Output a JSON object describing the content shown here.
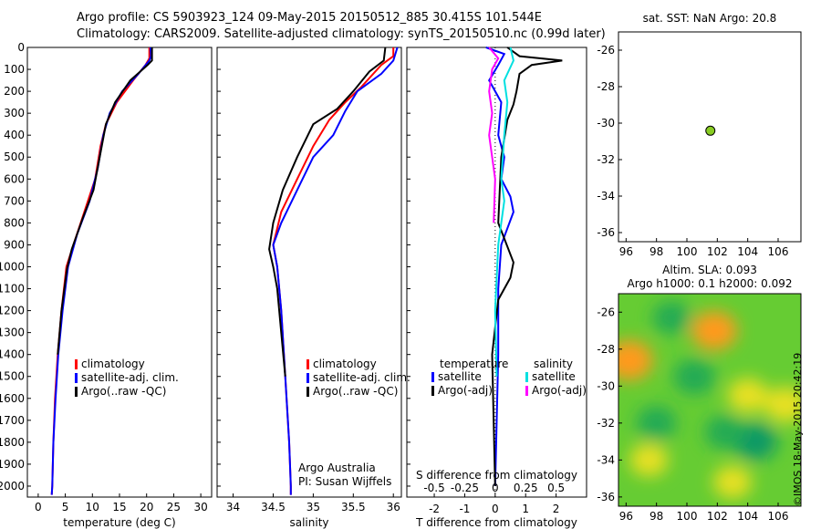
{
  "header": {
    "line1": "Argo profile: CS 5903923_124 09-May-2015 20150512_885 30.415S 101.544E",
    "line2": "Climatology: CARS2009. Satellite-adjusted climatology: synTS_20150510.nc (0.99d later)"
  },
  "colors": {
    "clim": "#ff0000",
    "sat": "#0000ff",
    "argo": "#000000",
    "sat_s": "#00e0e0",
    "argo_s": "#ff00ff",
    "marker": "#88cc22"
  },
  "credits": {
    "line1": "Argo Australia",
    "line2": "PI: Susan Wijffels"
  },
  "timestamp": "©IMOS 18-May-2015 20:42:19",
  "chart_data": [
    {
      "id": "temperature",
      "type": "line",
      "xlabel": "temperature (deg C)",
      "xlim": [
        -2,
        32
      ],
      "ylim": [
        0,
        2050
      ],
      "xticks": [
        "0",
        "5",
        "10",
        "15",
        "20",
        "25",
        "30"
      ],
      "yticks": [
        "0",
        "100",
        "200",
        "300",
        "400",
        "500",
        "600",
        "700",
        "800",
        "900",
        "1000",
        "1100",
        "1200",
        "1300",
        "1400",
        "1500",
        "1600",
        "1700",
        "1800",
        "1900",
        "2000"
      ],
      "legend": [
        "climatology",
        "satellite-adj. clim.",
        "Argo(..raw -QC)"
      ],
      "series": [
        {
          "name": "climatology",
          "color": "clim",
          "points": [
            [
              20.5,
              0
            ],
            [
              20.5,
              50
            ],
            [
              19.8,
              80
            ],
            [
              17.5,
              150
            ],
            [
              14.5,
              250
            ],
            [
              12.5,
              350
            ],
            [
              11.5,
              450
            ],
            [
              10.5,
              600
            ],
            [
              8.5,
              750
            ],
            [
              6.5,
              900
            ],
            [
              5.2,
              1000
            ],
            [
              4.3,
              1200
            ],
            [
              3.6,
              1400
            ],
            [
              3.1,
              1600
            ],
            [
              2.8,
              1800
            ],
            [
              2.6,
              2000
            ],
            [
              2.5,
              2040
            ]
          ]
        },
        {
          "name": "satellite-adj. clim.",
          "color": "sat",
          "points": [
            [
              20.7,
              0
            ],
            [
              20.8,
              40
            ],
            [
              20.5,
              60
            ],
            [
              18.5,
              120
            ],
            [
              15.5,
              200
            ],
            [
              13.2,
              300
            ],
            [
              12.0,
              400
            ],
            [
              11.0,
              550
            ],
            [
              9.5,
              700
            ],
            [
              7.2,
              850
            ],
            [
              5.5,
              1000
            ],
            [
              4.5,
              1200
            ],
            [
              3.7,
              1400
            ],
            [
              3.2,
              1600
            ],
            [
              2.8,
              1800
            ],
            [
              2.6,
              2000
            ],
            [
              2.5,
              2040
            ]
          ]
        },
        {
          "name": "Argo(..raw -QC)",
          "color": "argo",
          "points": [
            [
              21.0,
              0
            ],
            [
              21.0,
              60
            ],
            [
              20.2,
              80
            ],
            [
              17.0,
              150
            ],
            [
              14.2,
              250
            ],
            [
              12.5,
              350
            ],
            [
              11.5,
              480
            ],
            [
              10.2,
              650
            ],
            [
              8.2,
              780
            ],
            [
              6.2,
              920
            ],
            [
              5.3,
              1010
            ],
            [
              4.3,
              1200
            ],
            [
              3.6,
              1400
            ]
          ]
        }
      ]
    },
    {
      "id": "salinity",
      "type": "line",
      "xlabel": "salinity",
      "xlim": [
        33.8,
        36.1
      ],
      "ylim": [
        0,
        2050
      ],
      "xticks": [
        "34",
        "34.5",
        "35",
        "35.5",
        "36"
      ],
      "legend": [
        "climatology",
        "satellite-adj. clim.",
        "Argo(..raw -QC)"
      ],
      "series": [
        {
          "name": "climatology",
          "color": "clim",
          "points": [
            [
              36.0,
              0
            ],
            [
              36.0,
              40
            ],
            [
              35.85,
              80
            ],
            [
              35.6,
              180
            ],
            [
              35.4,
              250
            ],
            [
              35.2,
              330
            ],
            [
              35.0,
              450
            ],
            [
              34.8,
              600
            ],
            [
              34.6,
              750
            ],
            [
              34.5,
              900
            ],
            [
              34.55,
              1000
            ],
            [
              34.6,
              1200
            ],
            [
              34.65,
              1500
            ],
            [
              34.7,
              1800
            ],
            [
              34.72,
              2000
            ],
            [
              34.72,
              2040
            ]
          ]
        },
        {
          "name": "satellite-adj. clim.",
          "color": "sat",
          "points": [
            [
              36.05,
              0
            ],
            [
              36.0,
              60
            ],
            [
              35.85,
              120
            ],
            [
              35.55,
              200
            ],
            [
              35.4,
              290
            ],
            [
              35.25,
              400
            ],
            [
              35.0,
              500
            ],
            [
              34.8,
              650
            ],
            [
              34.6,
              800
            ],
            [
              34.5,
              900
            ],
            [
              34.55,
              1000
            ],
            [
              34.6,
              1200
            ],
            [
              34.65,
              1500
            ],
            [
              34.7,
              1800
            ],
            [
              34.72,
              2000
            ],
            [
              34.72,
              2040
            ]
          ]
        },
        {
          "name": "Argo(..raw -QC)",
          "color": "argo",
          "points": [
            [
              35.9,
              0
            ],
            [
              35.88,
              60
            ],
            [
              35.7,
              110
            ],
            [
              35.5,
              200
            ],
            [
              35.3,
              280
            ],
            [
              35.0,
              350
            ],
            [
              34.8,
              500
            ],
            [
              34.62,
              650
            ],
            [
              34.5,
              800
            ],
            [
              34.45,
              920
            ],
            [
              34.5,
              1000
            ],
            [
              34.55,
              1100
            ],
            [
              34.6,
              1300
            ],
            [
              34.65,
              1500
            ]
          ]
        }
      ]
    },
    {
      "id": "difference",
      "type": "line",
      "xlabel": "T difference from climatology",
      "top_label": "S difference from climatology",
      "xlim": [
        -2.9,
        3.0
      ],
      "ylim": [
        0,
        2050
      ],
      "xticks_t": [
        "-2",
        "-1",
        "0",
        "1",
        "2"
      ],
      "xticks_s": [
        "-0.5",
        "-0.25",
        "0",
        "0.25",
        "0.5"
      ],
      "legend_t_title": "temperature",
      "legend_s_title": "salinity",
      "legend_t": [
        "satellite",
        "Argo(-adj)"
      ],
      "legend_s": [
        "satellite",
        "Argo(-adj)"
      ],
      "series": [
        {
          "name": "satellite",
          "color": "sat",
          "points": [
            [
              -0.3,
              0
            ],
            [
              0.3,
              30
            ],
            [
              0.1,
              80
            ],
            [
              -0.2,
              150
            ],
            [
              0.2,
              250
            ],
            [
              0.1,
              400
            ],
            [
              0.3,
              500
            ],
            [
              0.2,
              600
            ],
            [
              0.5,
              680
            ],
            [
              0.6,
              750
            ],
            [
              0.2,
              900
            ],
            [
              0.1,
              1100
            ],
            [
              0.1,
              1400
            ],
            [
              0.0,
              2000
            ]
          ]
        },
        {
          "name": "Argo(-adj)",
          "color": "argo",
          "points": [
            [
              0.4,
              0
            ],
            [
              0.8,
              40
            ],
            [
              2.2,
              60
            ],
            [
              1.2,
              80
            ],
            [
              0.8,
              120
            ],
            [
              0.7,
              200
            ],
            [
              0.6,
              260
            ],
            [
              0.4,
              330
            ],
            [
              0.2,
              500
            ],
            [
              0.1,
              800
            ],
            [
              0.6,
              980
            ],
            [
              0.5,
              1050
            ],
            [
              0.1,
              1150
            ],
            [
              -0.1,
              1400
            ],
            [
              0.0,
              2000
            ]
          ]
        },
        {
          "name": "satellite",
          "color": "sat_s",
          "points": [
            [
              0.5,
              0
            ],
            [
              0.6,
              60
            ],
            [
              0.3,
              150
            ],
            [
              0.4,
              250
            ],
            [
              0.3,
              400
            ],
            [
              0.2,
              600
            ],
            [
              0.3,
              700
            ],
            [
              0.1,
              900
            ],
            [
              0.0,
              1200
            ],
            [
              0.05,
              1500
            ]
          ]
        },
        {
          "name": "Argo(-adj)",
          "color": "argo_s",
          "points": [
            [
              -0.2,
              0
            ],
            [
              0.1,
              50
            ],
            [
              -0.1,
              100
            ],
            [
              -0.2,
              200
            ],
            [
              -0.1,
              300
            ],
            [
              -0.2,
              400
            ],
            [
              0.0,
              600
            ],
            [
              -0.05,
              800
            ]
          ]
        }
      ]
    },
    {
      "id": "sst",
      "type": "scatter",
      "title": "sat. SST: NaN Argo: 20.8",
      "xlim": [
        95.5,
        107.5
      ],
      "ylim": [
        -36.5,
        -25
      ],
      "xticks": [
        "96",
        "98",
        "100",
        "102",
        "104",
        "106"
      ],
      "yticks": [
        "-26",
        "-28",
        "-30",
        "-32",
        "-34",
        "-36"
      ],
      "points": [
        [
          101.544,
          -30.415
        ]
      ]
    },
    {
      "id": "sla",
      "type": "heatmap",
      "title": "Altim. SLA: 0.093",
      "subtitle": "Argo h1000: 0.1 h2000: 0.092",
      "xlim": [
        95.5,
        107.5
      ],
      "ylim": [
        -36.5,
        -25
      ],
      "xticks": [
        "96",
        "98",
        "100",
        "102",
        "104",
        "106"
      ],
      "yticks": [
        "-26",
        "-28",
        "-30",
        "-32",
        "-34",
        "-36"
      ],
      "hotspots": [
        {
          "lon": 101.8,
          "lat": -27.0,
          "level": 0.9
        },
        {
          "lon": 96.2,
          "lat": -28.6,
          "level": 1.0
        },
        {
          "lon": 104.0,
          "lat": -30.5,
          "level": 0.6
        },
        {
          "lon": 97.5,
          "lat": -34.0,
          "level": 0.5
        },
        {
          "lon": 103.0,
          "lat": -35.2,
          "level": 0.5
        },
        {
          "lon": 106.5,
          "lat": -31.0,
          "level": 0.7
        },
        {
          "lon": 98.0,
          "lat": -32.0,
          "level": -0.6
        },
        {
          "lon": 100.5,
          "lat": -29.5,
          "level": -0.7
        },
        {
          "lon": 104.5,
          "lat": -33.0,
          "level": -0.8
        },
        {
          "lon": 99.0,
          "lat": -26.3,
          "level": -0.5
        },
        {
          "lon": 102.5,
          "lat": -32.5,
          "level": -0.6
        }
      ]
    }
  ]
}
